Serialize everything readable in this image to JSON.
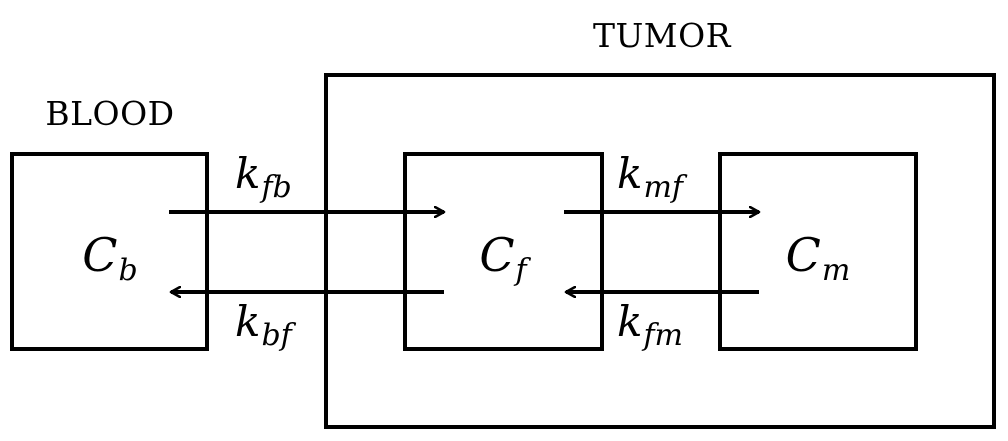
{
  "regions": {
    "tumor_label": "TUMOR",
    "blood_label": "BLOOD"
  },
  "compartments": {
    "blood": {
      "symbol": "C",
      "subscript": "b"
    },
    "free": {
      "symbol": "C",
      "subscript": "f"
    },
    "metabolized": {
      "symbol": "C",
      "subscript": "m"
    }
  },
  "rates": {
    "k_fb": {
      "symbol": "k",
      "subscript": "fb"
    },
    "k_bf": {
      "symbol": "k",
      "subscript": "bf"
    },
    "k_mf": {
      "symbol": "k",
      "subscript": "mf"
    },
    "k_fm": {
      "symbol": "k",
      "subscript": "fm"
    }
  },
  "colors": {
    "stroke": "#000000",
    "background": "#ffffff"
  }
}
